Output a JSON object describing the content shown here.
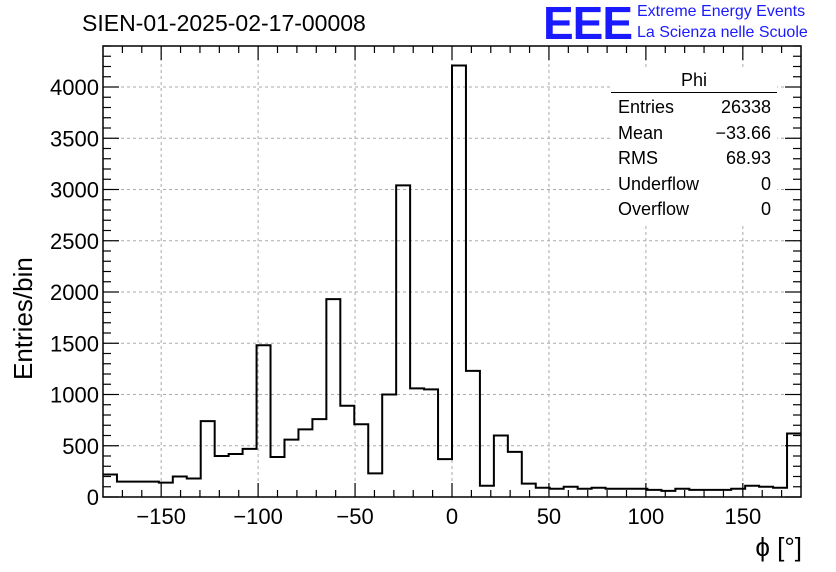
{
  "title": "SIEN-01-2025-02-17-00008",
  "logo": {
    "mark": "EEE",
    "line1": "Extreme Energy Events",
    "line2": "La Scienza nelle Scuole",
    "color": "#1a1aff"
  },
  "stats": {
    "title": "Phi",
    "rows": [
      {
        "label": "Entries",
        "value": "26338"
      },
      {
        "label": "Mean",
        "value": "−33.66"
      },
      {
        "label": "RMS",
        "value": "68.93"
      },
      {
        "label": "Underflow",
        "value": "0"
      },
      {
        "label": "Overflow",
        "value": "0"
      }
    ]
  },
  "chart_data": {
    "type": "bar",
    "histogram": true,
    "xlabel": "ϕ [°]",
    "ylabel": "Entries/bin",
    "xlim": [
      -180,
      180
    ],
    "ylim": [
      0,
      4400
    ],
    "bin_width": 7.2,
    "x_ticks": [
      -150,
      -100,
      -50,
      0,
      50,
      100,
      150
    ],
    "x_tick_labels": [
      "−150",
      "−100",
      "−50",
      "0",
      "50",
      "100",
      "150"
    ],
    "y_ticks": [
      0,
      500,
      1000,
      1500,
      2000,
      2500,
      3000,
      3500,
      4000
    ],
    "y_tick_labels": [
      "0",
      "500",
      "1000",
      "1500",
      "2000",
      "2500",
      "3000",
      "3500",
      "4000"
    ],
    "grid": true,
    "line_color": "#000000",
    "values": [
      220,
      150,
      150,
      150,
      140,
      200,
      180,
      740,
      400,
      420,
      470,
      1480,
      390,
      560,
      660,
      760,
      1930,
      890,
      710,
      230,
      1000,
      3040,
      1060,
      1050,
      370,
      4210,
      1230,
      110,
      600,
      440,
      130,
      90,
      80,
      100,
      80,
      90,
      80,
      80,
      80,
      70,
      60,
      80,
      70,
      70,
      70,
      80,
      110,
      100,
      90,
      620
    ]
  }
}
